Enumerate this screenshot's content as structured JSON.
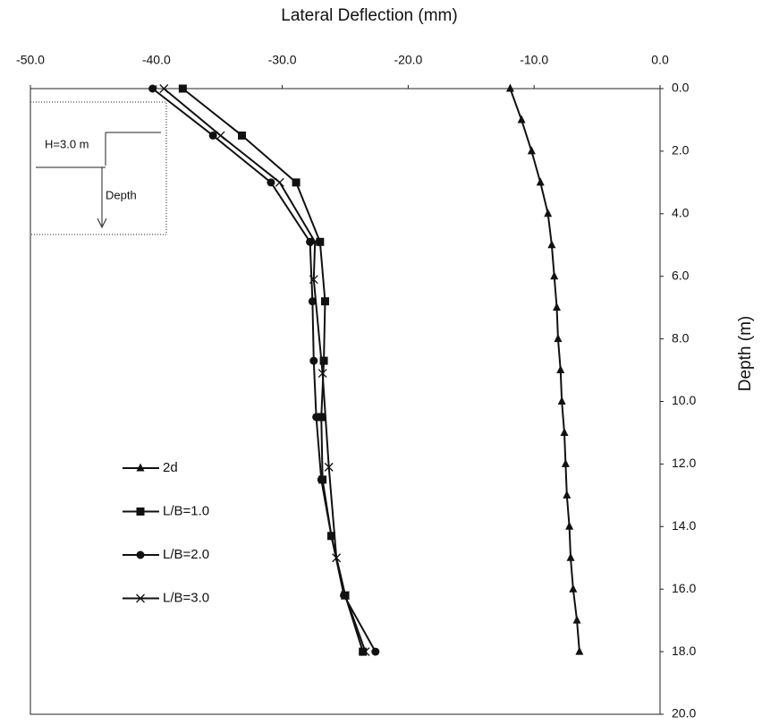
{
  "chart_data": {
    "type": "line",
    "title": "Lateral Deflection (mm)",
    "y_label": "Depth (m)",
    "annotations": [
      "H=3.0 m",
      "Depth"
    ],
    "xlim": [
      -50,
      0
    ],
    "ylim": [
      0,
      20
    ],
    "y_inverted": true,
    "xticks": [
      {
        "value": -50,
        "label": "-50.0"
      },
      {
        "value": -40,
        "label": "-40.0"
      },
      {
        "value": -30,
        "label": "-30.0"
      },
      {
        "value": -20,
        "label": "-20.0"
      },
      {
        "value": -10,
        "label": "-10.0"
      },
      {
        "value": 0,
        "label": "0.0"
      }
    ],
    "yticks": [
      {
        "value": 0,
        "label": "0.0"
      },
      {
        "value": 2,
        "label": "2.0"
      },
      {
        "value": 4,
        "label": "4.0"
      },
      {
        "value": 6,
        "label": "6.0"
      },
      {
        "value": 8,
        "label": "8.0"
      },
      {
        "value": 10,
        "label": "10.0"
      },
      {
        "value": 12,
        "label": "12.0"
      },
      {
        "value": 14,
        "label": "14.0"
      },
      {
        "value": 16,
        "label": "16.0"
      },
      {
        "value": 18,
        "label": "18.0"
      },
      {
        "value": 20,
        "label": "20.0"
      }
    ],
    "grid": false,
    "legend_position": "left",
    "series": [
      {
        "name": "2d",
        "color": "#111111",
        "marker": "triangle",
        "x": [
          -11.9,
          -11.0,
          -10.2,
          -9.5,
          -8.9,
          -8.6,
          -8.4,
          -8.2,
          -8.1,
          -7.9,
          -7.8,
          -7.6,
          -7.5,
          -7.4,
          -7.2,
          -7.1,
          -6.9,
          -6.6,
          -6.4
        ],
        "values": [
          0,
          1,
          2,
          3,
          4,
          5,
          6,
          7,
          8,
          9,
          10,
          11,
          12,
          13,
          14,
          15,
          16,
          17,
          18
        ]
      },
      {
        "name": "L/B=1.0",
        "color": "#111111",
        "marker": "square",
        "x": [
          -37.9,
          -33.2,
          -28.9,
          -27.0,
          -26.6,
          -26.7,
          -26.9,
          -26.8,
          -26.1,
          -25.0,
          -23.6
        ],
        "values": [
          0,
          1.5,
          3,
          4.9,
          6.8,
          8.7,
          10.5,
          12.5,
          14.3,
          16.2,
          18
        ]
      },
      {
        "name": "L/B=2.0",
        "color": "#111111",
        "marker": "circle",
        "x": [
          -40.3,
          -35.5,
          -30.9,
          -27.8,
          -27.6,
          -27.5,
          -27.3,
          -26.9,
          -26.1,
          -25.1,
          -22.6
        ],
        "values": [
          0,
          1.5,
          3,
          4.9,
          6.8,
          8.7,
          10.5,
          12.5,
          14.3,
          16.2,
          18
        ]
      },
      {
        "name": "L/B=3.0",
        "color": "#111111",
        "marker": "cross",
        "x": [
          -39.4,
          -34.9,
          -30.2,
          -27.4,
          -27.5,
          -26.8,
          -26.3,
          -25.7,
          -25.0,
          -23.4
        ],
        "values": [
          0,
          1.5,
          3,
          4.9,
          6.1,
          9.1,
          12.1,
          15.0,
          16.2,
          18
        ]
      }
    ]
  }
}
